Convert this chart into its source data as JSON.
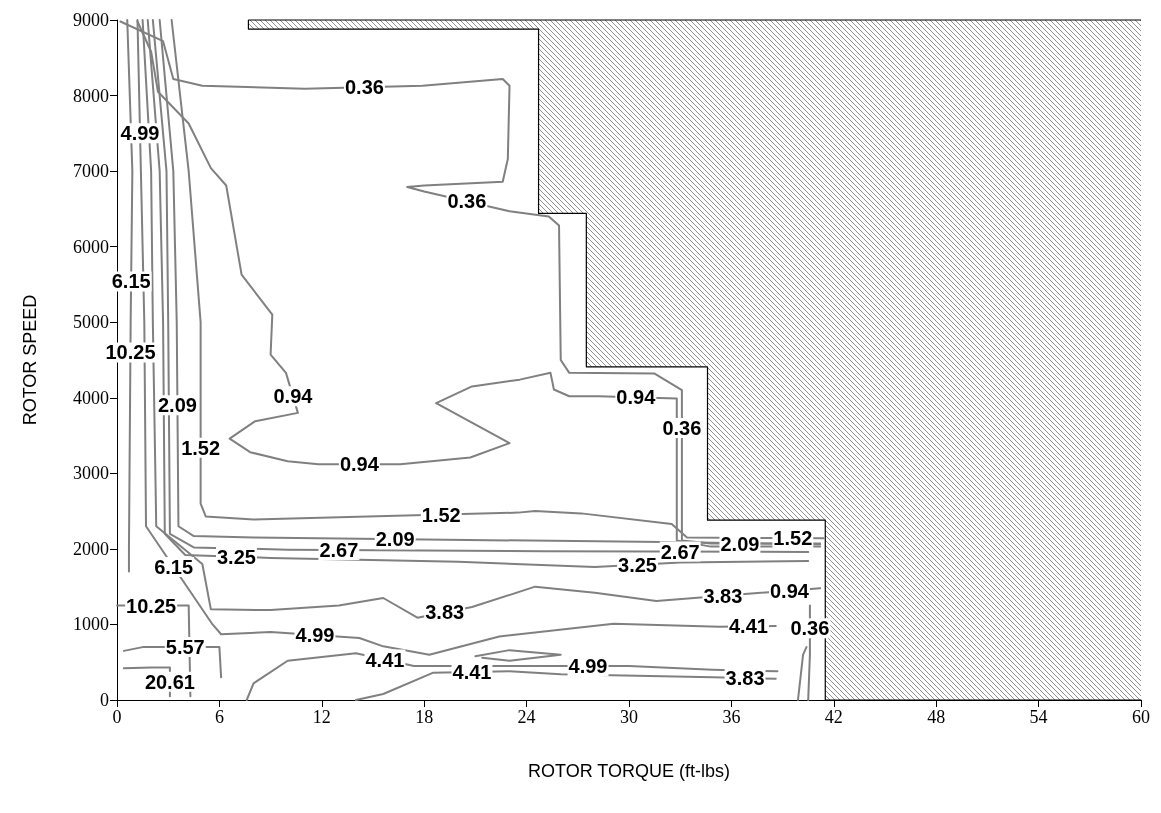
{
  "chart_data": {
    "type": "line",
    "xlabel": "ROTOR TORQUE (ft-lbs)",
    "ylabel": "ROTOR SPEED",
    "xlim": [
      0,
      60
    ],
    "xticks": [
      0,
      6,
      12,
      18,
      24,
      30,
      36,
      42,
      48,
      54,
      60
    ],
    "ylim": [
      0,
      9000
    ],
    "yticks": [
      0,
      1000,
      2000,
      3000,
      4000,
      5000,
      6000,
      7000,
      8000,
      9000
    ],
    "marker": "none",
    "series": [
      {
        "color": "#000000",
        "x": [
          7.7,
          7.7,
          24.7,
          24.7,
          27.5,
          27.5,
          34.6,
          34.6,
          41.5,
          41.5,
          60
        ],
        "values": [
          9000,
          8880,
          8880,
          6440,
          6440,
          4410,
          4410,
          2380,
          2380,
          0,
          0
        ],
        "upper": [
          9000,
          9000,
          9000,
          9000,
          9000,
          9000,
          9000,
          9000,
          9000,
          9000,
          9000
        ],
        "lower": [
          9000,
          8880,
          8880,
          6440,
          6440,
          4410,
          4410,
          2380,
          2380,
          0,
          0
        ]
      },
      {
        "color": "#808080",
        "x": [
          0.2,
          2.7,
          3.3,
          5.0,
          11,
          17.9,
          22.6,
          23,
          22.9,
          22.6,
          18,
          17,
          18,
          23,
          25.3,
          25.9,
          26,
          26.5,
          31.5,
          33.1,
          33.1,
          34.8,
          41.2
        ],
        "values": [
          8980,
          8720,
          8220,
          8130,
          8090,
          8130,
          8220,
          8130,
          7160,
          6860,
          6810,
          6790,
          6730,
          6470,
          6400,
          6280,
          4500,
          4330,
          4320,
          4100,
          2110,
          2070,
          2070
        ]
      },
      {
        "color": "#808080",
        "x": [
          1.2,
          2.0,
          2.4,
          4.2,
          5.5,
          6.4,
          7.3,
          9.1,
          9.0,
          9.9,
          10.6,
          8.1,
          6.6,
          7.8,
          10,
          11.8,
          16.6,
          20.7,
          23.0,
          18.7,
          20.8,
          23.6,
          25.4,
          25.6,
          26.5,
          28.2,
          32.8,
          32.8,
          34.8,
          41.2
        ],
        "values": [
          8980,
          8580,
          8050,
          7630,
          7040,
          6810,
          5630,
          5100,
          4570,
          4330,
          3800,
          3690,
          3460,
          3280,
          3160,
          3120,
          3120,
          3210,
          3400,
          3930,
          4150,
          4240,
          4330,
          4110,
          4020,
          4020,
          3990,
          2110,
          2030,
          2030
        ]
      },
      {
        "color": "#808080",
        "x": [
          3.2,
          4.2,
          4.9,
          4.9,
          5.2,
          8,
          23.5,
          24.5,
          27.2,
          32.5,
          33.4,
          41.4
        ],
        "values": [
          9000,
          7000,
          5000,
          2600,
          2430,
          2390,
          2480,
          2500,
          2470,
          2330,
          2150,
          2140
        ]
      },
      {
        "color": "#808080",
        "x": [
          2.5,
          3.3,
          3.5,
          3.6,
          4.5,
          8,
          32,
          41.2
        ],
        "values": [
          9000,
          7000,
          5000,
          2300,
          2170,
          2150,
          2090,
          2060
        ]
      },
      {
        "color": "#808080",
        "x": [
          2.1,
          2.9,
          3.0,
          3.1,
          4.5,
          10,
          25,
          40.5
        ],
        "values": [
          9000,
          7000,
          5000,
          2200,
          2020,
          1990,
          1970,
          1960
        ]
      },
      {
        "color": "#808080",
        "x": [
          1.8,
          2.5,
          2.7,
          2.8,
          4,
          9,
          20,
          28,
          33,
          40.5
        ],
        "values": [
          9000,
          7000,
          5000,
          2200,
          1920,
          1880,
          1830,
          1760,
          1820,
          1840
        ]
      },
      {
        "color": "#808080",
        "x": [
          1.5,
          2.0,
          2.1,
          2.3,
          5.0,
          5.5,
          9,
          13,
          15.6,
          17.6,
          20.8,
          24.5,
          28,
          31.6,
          41.2
        ],
        "values": [
          9000,
          7000,
          5000,
          2300,
          1800,
          1200,
          1190,
          1250,
          1350,
          1090,
          1230,
          1500,
          1420,
          1310,
          1480
        ]
      },
      {
        "color": "#808080",
        "x": [
          1.2,
          1.6,
          1.7,
          5.6,
          6.1,
          9,
          14.2,
          15.6,
          18.3,
          22.4,
          29.1,
          35.3,
          38.6
        ],
        "values": [
          9000,
          5000,
          2300,
          1000,
          870,
          900,
          820,
          710,
          600,
          840,
          1010,
          970,
          980
        ]
      },
      {
        "color": "#808080",
        "x": [
          7.6,
          8,
          10,
          14,
          17.4,
          25.3,
          30,
          34.9,
          38.7
        ],
        "values": [
          0,
          220,
          520,
          620,
          450,
          450,
          450,
          400,
          380
        ]
      },
      {
        "color": "#808080",
        "x": [
          14,
          15.6,
          18.5,
          23,
          26.0,
          34.9,
          38.6
        ],
        "values": [
          0,
          80,
          360,
          380,
          340,
          300,
          280
        ]
      },
      {
        "color": "#808080",
        "x": [
          21,
          23,
          26,
          23,
          21.4
        ],
        "values": [
          580,
          660,
          600,
          520,
          560
        ]
      },
      {
        "color": "#808080",
        "x": [
          0.6,
          0.9,
          0.8,
          0.7,
          0.7
        ],
        "values": [
          9000,
          7000,
          5000,
          2000,
          1700
        ]
      },
      {
        "color": "#808080",
        "x": [
          0.4,
          1.5,
          6,
          6.1
        ],
        "values": [
          650,
          700,
          700,
          300
        ]
      },
      {
        "color": "#808080",
        "x": [
          0.4,
          2,
          3.1,
          3.1
        ],
        "values": [
          420,
          430,
          430,
          50
        ]
      },
      {
        "color": "#808080",
        "x": [
          0,
          4.2,
          4.3
        ],
        "values": [
          1250,
          1250,
          50
        ]
      },
      {
        "color": "#808080",
        "x": [
          39.9,
          40.2,
          40.4
        ],
        "values": [
          0,
          600,
          700
        ]
      },
      {
        "color": "#808080",
        "x": [
          40.5,
          40.6,
          40.6
        ],
        "values": [
          0,
          600,
          1250
        ]
      }
    ],
    "annotations": [
      {
        "text": "0.36",
        "x": 14.5,
        "y": 8110
      },
      {
        "text": "0.36",
        "x": 20.5,
        "y": 6600
      },
      {
        "text": "4.99",
        "x": 1.35,
        "y": 7500
      },
      {
        "text": "6.15",
        "x": 0.83,
        "y": 5540
      },
      {
        "text": "10.25",
        "x": 0.79,
        "y": 4600
      },
      {
        "text": "0.94",
        "x": 10.31,
        "y": 4020
      },
      {
        "text": "2.09",
        "x": 3.54,
        "y": 3900
      },
      {
        "text": "1.52",
        "x": 4.9,
        "y": 3340
      },
      {
        "text": "0.94",
        "x": 14.2,
        "y": 3120
      },
      {
        "text": "0.94",
        "x": 30.4,
        "y": 4006
      },
      {
        "text": "0.36",
        "x": 33.1,
        "y": 3600
      },
      {
        "text": "1.52",
        "x": 19,
        "y": 2454
      },
      {
        "text": "2.09",
        "x": 16.3,
        "y": 2129
      },
      {
        "text": "2.67",
        "x": 13,
        "y": 1986
      },
      {
        "text": "3.25",
        "x": 7,
        "y": 1896
      },
      {
        "text": "6.15",
        "x": 3.32,
        "y": 1760
      },
      {
        "text": "3.25",
        "x": 30.5,
        "y": 1790
      },
      {
        "text": "2.67",
        "x": 33,
        "y": 1965
      },
      {
        "text": "2.09",
        "x": 36.5,
        "y": 2071
      },
      {
        "text": "1.52",
        "x": 39.6,
        "y": 2142
      },
      {
        "text": "3.83",
        "x": 35.5,
        "y": 1379
      },
      {
        "text": "0.94",
        "x": 39.4,
        "y": 1448
      },
      {
        "text": "10.25",
        "x": 2,
        "y": 1250
      },
      {
        "text": "3.83",
        "x": 19.2,
        "y": 1160
      },
      {
        "text": "4.41",
        "x": 37,
        "y": 975
      },
      {
        "text": "0.36",
        "x": 40.6,
        "y": 950
      },
      {
        "text": "4.99",
        "x": 11.6,
        "y": 860
      },
      {
        "text": "5.57",
        "x": 4,
        "y": 700
      },
      {
        "text": "4.41",
        "x": 15.7,
        "y": 535
      },
      {
        "text": "4.99",
        "x": 27.6,
        "y": 450
      },
      {
        "text": "4.41",
        "x": 20.8,
        "y": 370
      },
      {
        "text": "20.61",
        "x": 3.1,
        "y": 240
      },
      {
        "text": "3.83",
        "x": 36.8,
        "y": 290
      }
    ]
  }
}
